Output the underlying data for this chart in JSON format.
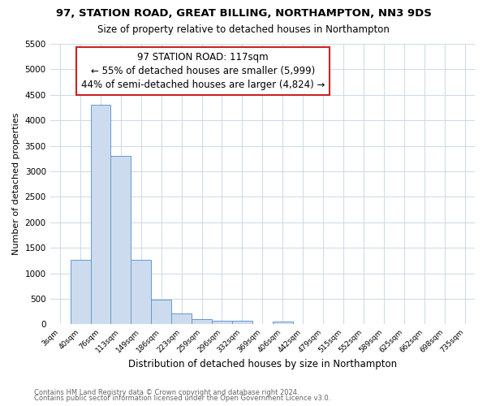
{
  "title1": "97, STATION ROAD, GREAT BILLING, NORTHAMPTON, NN3 9DS",
  "title2": "Size of property relative to detached houses in Northampton",
  "xlabel": "Distribution of detached houses by size in Northampton",
  "ylabel": "Number of detached properties",
  "bin_labels": [
    "3sqm",
    "40sqm",
    "76sqm",
    "113sqm",
    "149sqm",
    "186sqm",
    "223sqm",
    "259sqm",
    "296sqm",
    "332sqm",
    "369sqm",
    "406sqm",
    "442sqm",
    "479sqm",
    "515sqm",
    "552sqm",
    "589sqm",
    "625sqm",
    "662sqm",
    "698sqm",
    "735sqm"
  ],
  "bar_values": [
    0,
    1270,
    4300,
    3300,
    1270,
    480,
    220,
    100,
    70,
    70,
    0,
    60,
    0,
    0,
    0,
    0,
    0,
    0,
    0,
    0,
    0
  ],
  "bar_color": "#ccdcee",
  "bar_edge_color": "#6699cc",
  "annotation_line1": "97 STATION ROAD: 117sqm",
  "annotation_line2": "← 55% of detached houses are smaller (5,999)",
  "annotation_line3": "44% of semi-detached houses are larger (4,824) →",
  "annotation_box_color": "#ffffff",
  "annotation_box_edge_color": "#cc2222",
  "ylim_max": 5500,
  "yticks": [
    0,
    500,
    1000,
    1500,
    2000,
    2500,
    3000,
    3500,
    4000,
    4500,
    5000,
    5500
  ],
  "footer1": "Contains HM Land Registry data © Crown copyright and database right 2024.",
  "footer2": "Contains public sector information licensed under the Open Government Licence v3.0.",
  "bg_color": "#ffffff",
  "plot_bg_color": "#ffffff",
  "grid_color": "#d0dce8"
}
